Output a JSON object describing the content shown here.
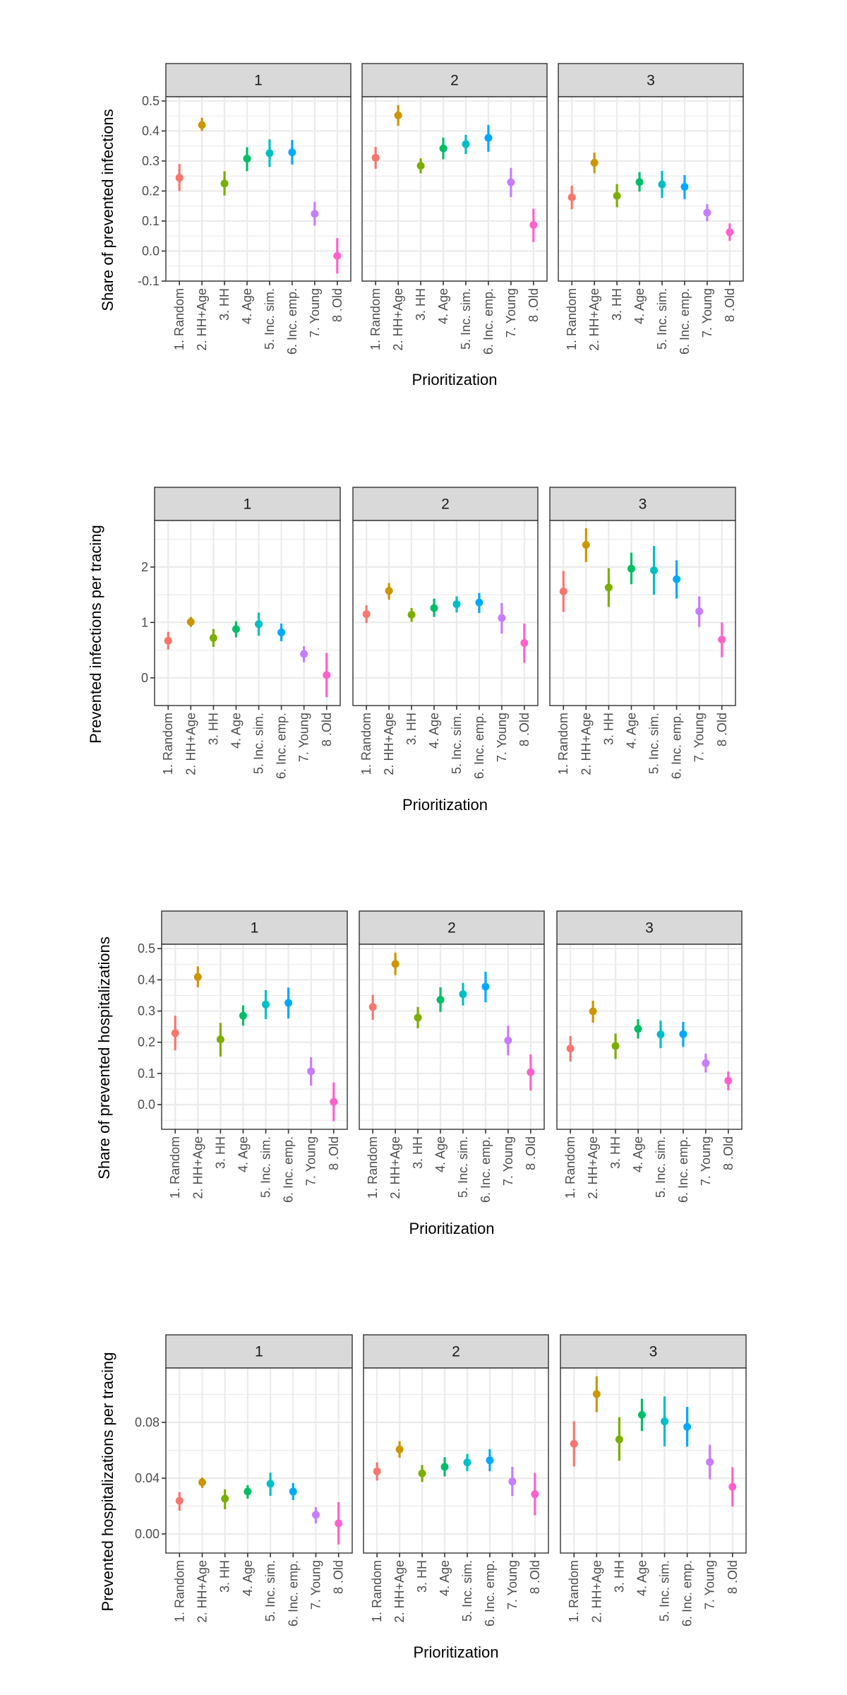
{
  "chart_data": [
    {
      "type": "scatter",
      "subtype": "pointrange-facets",
      "ylabel": "Share of prevented infections",
      "xlabel": "Prioritization",
      "facets": [
        "1",
        "2",
        "3"
      ],
      "categories": [
        "1. Random",
        "2. HH+Age",
        "3. HH",
        "4. Age",
        "5. Inc. sim.",
        "6. Inc. emp.",
        "7. Young",
        "8 .Old"
      ],
      "ylim": [
        -0.1,
        0.514
      ],
      "yticks": [
        -0.1,
        0.0,
        0.1,
        0.2,
        0.3,
        0.4,
        0.5
      ],
      "ytick_labels": [
        "-0.1",
        "0.0",
        "0.1",
        "0.2",
        "0.3",
        "0.4",
        "0.5"
      ],
      "grid": true,
      "series": [
        {
          "facet": "1",
          "values": [
            0.244,
            0.42,
            0.225,
            0.308,
            0.326,
            0.329,
            0.124,
            -0.016
          ],
          "lower": [
            0.2,
            0.4,
            0.185,
            0.266,
            0.28,
            0.288,
            0.085,
            -0.075
          ],
          "upper": [
            0.29,
            0.444,
            0.266,
            0.346,
            0.372,
            0.37,
            0.164,
            0.043
          ]
        },
        {
          "facet": "2",
          "values": [
            0.311,
            0.452,
            0.284,
            0.342,
            0.356,
            0.377,
            0.229,
            0.087
          ],
          "lower": [
            0.274,
            0.417,
            0.259,
            0.306,
            0.323,
            0.331,
            0.18,
            0.03
          ],
          "upper": [
            0.347,
            0.486,
            0.309,
            0.378,
            0.387,
            0.42,
            0.277,
            0.141
          ]
        },
        {
          "facet": "3",
          "values": [
            0.179,
            0.294,
            0.184,
            0.23,
            0.222,
            0.214,
            0.128,
            0.063
          ],
          "lower": [
            0.139,
            0.259,
            0.146,
            0.198,
            0.177,
            0.173,
            0.099,
            0.034
          ],
          "upper": [
            0.218,
            0.328,
            0.223,
            0.263,
            0.267,
            0.253,
            0.156,
            0.092
          ]
        }
      ]
    },
    {
      "type": "scatter",
      "subtype": "pointrange-facets",
      "ylabel": "Prevented infections per tracing",
      "xlabel": "Prioritization",
      "facets": [
        "1",
        "2",
        "3"
      ],
      "categories": [
        "1. Random",
        "2. HH+Age",
        "3. HH",
        "4. Age",
        "5. Inc. sim.",
        "6. Inc. emp.",
        "7. Young",
        "8 .Old"
      ],
      "ylim": [
        -0.5,
        2.84
      ],
      "yticks": [
        0,
        1,
        2
      ],
      "ytick_labels": [
        "0",
        "1",
        "2"
      ],
      "grid": true,
      "series": [
        {
          "facet": "1",
          "values": [
            0.67,
            1.01,
            0.72,
            0.88,
            0.97,
            0.82,
            0.43,
            0.05
          ],
          "lower": [
            0.51,
            0.92,
            0.56,
            0.73,
            0.76,
            0.66,
            0.28,
            -0.35
          ],
          "upper": [
            0.83,
            1.1,
            0.88,
            1.02,
            1.18,
            0.98,
            0.57,
            0.45
          ]
        },
        {
          "facet": "2",
          "values": [
            1.15,
            1.57,
            1.14,
            1.26,
            1.33,
            1.36,
            1.08,
            0.63
          ],
          "lower": [
            0.99,
            1.41,
            1.01,
            1.1,
            1.18,
            1.17,
            0.8,
            0.27
          ],
          "upper": [
            1.31,
            1.71,
            1.26,
            1.43,
            1.47,
            1.53,
            1.35,
            0.98
          ]
        },
        {
          "facet": "3",
          "values": [
            1.56,
            2.4,
            1.63,
            1.97,
            1.94,
            1.78,
            1.2,
            0.69
          ],
          "lower": [
            1.19,
            2.09,
            1.28,
            1.69,
            1.5,
            1.43,
            0.92,
            0.37
          ],
          "upper": [
            1.93,
            2.7,
            1.98,
            2.26,
            2.38,
            2.12,
            1.47,
            1.0
          ]
        }
      ]
    },
    {
      "type": "scatter",
      "subtype": "pointrange-facets",
      "ylabel": "Share of prevented hospitalizations",
      "xlabel": "Prioritization",
      "facets": [
        "1",
        "2",
        "3"
      ],
      "categories": [
        "1. Random",
        "2. HH+Age",
        "3. HH",
        "4. Age",
        "5. Inc. sim.",
        "6. Inc. emp.",
        "7. Young",
        "8 .Old"
      ],
      "ylim": [
        -0.079,
        0.514
      ],
      "yticks": [
        0.0,
        0.1,
        0.2,
        0.3,
        0.4,
        0.5
      ],
      "ytick_labels": [
        "0.0",
        "0.1",
        "0.2",
        "0.3",
        "0.4",
        "0.5"
      ],
      "grid": true,
      "series": [
        {
          "facet": "1",
          "values": [
            0.229,
            0.409,
            0.209,
            0.285,
            0.321,
            0.326,
            0.107,
            0.009
          ],
          "lower": [
            0.174,
            0.376,
            0.154,
            0.253,
            0.274,
            0.276,
            0.061,
            -0.053
          ],
          "upper": [
            0.285,
            0.443,
            0.262,
            0.318,
            0.367,
            0.375,
            0.152,
            0.071
          ]
        },
        {
          "facet": "2",
          "values": [
            0.313,
            0.451,
            0.279,
            0.336,
            0.354,
            0.378,
            0.206,
            0.104
          ],
          "lower": [
            0.272,
            0.415,
            0.245,
            0.297,
            0.318,
            0.328,
            0.158,
            0.045
          ],
          "upper": [
            0.352,
            0.487,
            0.313,
            0.376,
            0.39,
            0.426,
            0.253,
            0.161
          ]
        },
        {
          "facet": "3",
          "values": [
            0.18,
            0.299,
            0.188,
            0.243,
            0.225,
            0.226,
            0.133,
            0.077
          ],
          "lower": [
            0.138,
            0.263,
            0.146,
            0.212,
            0.181,
            0.185,
            0.103,
            0.046
          ],
          "upper": [
            0.22,
            0.333,
            0.228,
            0.274,
            0.269,
            0.265,
            0.163,
            0.106
          ]
        }
      ]
    },
    {
      "type": "scatter",
      "subtype": "pointrange-facets",
      "ylabel": "Prevented hospitalizations per tracing",
      "xlabel": "Prioritization",
      "facets": [
        "1",
        "2",
        "3"
      ],
      "categories": [
        "1. Random",
        "2. HH+Age",
        "3. HH",
        "4. Age",
        "5. Inc. sim.",
        "6. Inc. emp.",
        "7. Young",
        "8 .Old"
      ],
      "ylim": [
        -0.0137,
        0.119
      ],
      "yticks": [
        0.0,
        0.04,
        0.08
      ],
      "ytick_labels": [
        "0.00",
        "0.04",
        "0.08"
      ],
      "grid": true,
      "series": [
        {
          "facet": "1",
          "values": [
            0.0238,
            0.037,
            0.0253,
            0.0304,
            0.036,
            0.0304,
            0.0137,
            0.0076
          ],
          "lower": [
            0.0167,
            0.033,
            0.0177,
            0.0253,
            0.0273,
            0.0243,
            0.0076,
            -0.0076
          ],
          "upper": [
            0.03,
            0.0405,
            0.032,
            0.035,
            0.044,
            0.0365,
            0.0192,
            0.0228
          ]
        },
        {
          "facet": "2",
          "values": [
            0.0449,
            0.0606,
            0.0434,
            0.0481,
            0.0513,
            0.0528,
            0.0376,
            0.0285
          ],
          "lower": [
            0.0383,
            0.0547,
            0.0373,
            0.0413,
            0.045,
            0.045,
            0.0272,
            0.0133
          ],
          "upper": [
            0.0513,
            0.0665,
            0.0494,
            0.055,
            0.0574,
            0.0608,
            0.0481,
            0.0437
          ]
        },
        {
          "facet": "3",
          "values": [
            0.0646,
            0.1003,
            0.0678,
            0.0854,
            0.0807,
            0.0768,
            0.0516,
            0.0338
          ],
          "lower": [
            0.0484,
            0.0873,
            0.0525,
            0.0738,
            0.0628,
            0.0626,
            0.0392,
            0.0197
          ],
          "upper": [
            0.0808,
            0.1131,
            0.0837,
            0.097,
            0.0986,
            0.0911,
            0.064,
            0.0478
          ]
        }
      ]
    }
  ],
  "palette": [
    "#F8766D",
    "#CD9600",
    "#7CAE00",
    "#00BE67",
    "#00BFC4",
    "#00A9FF",
    "#C77CFF",
    "#FF61CC"
  ]
}
